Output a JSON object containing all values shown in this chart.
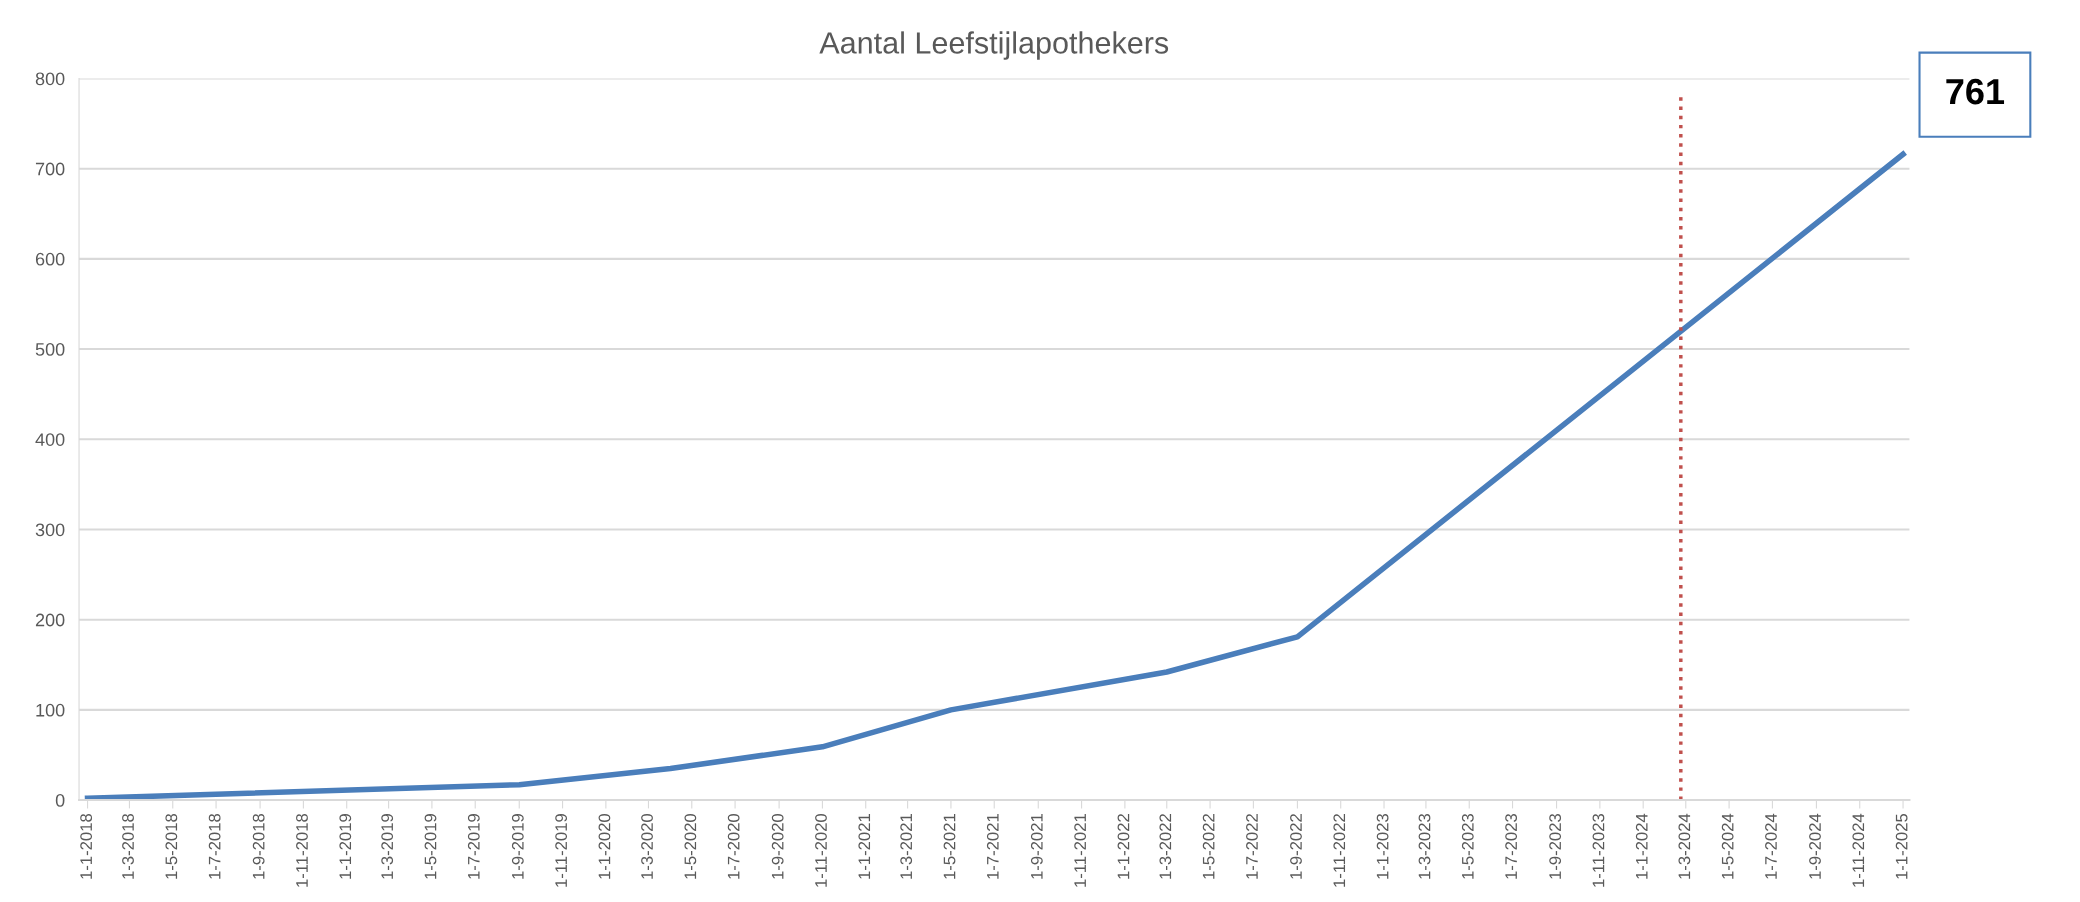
{
  "chart_data": {
    "type": "line",
    "title": "Aantal Leefstijlapothekers",
    "x": [
      "2018-01-01",
      "2019-09-01",
      "2020-04-01",
      "2020-11-01",
      "2021-05-01",
      "2022-03-01",
      "2022-09-01",
      "2025-01-01"
    ],
    "series": [
      {
        "color": "#4a7ebb",
        "values": [
          2,
          17,
          35,
          59,
          100,
          142,
          181,
          716
        ]
      }
    ],
    "ylim": [
      0,
      800
    ],
    "yticks": [
      0,
      100,
      200,
      300,
      400,
      500,
      600,
      700,
      800
    ],
    "xlim": [
      "2017-12-20",
      "2025-01-10"
    ],
    "xticks": [
      {
        "value": "2018-01-01",
        "label": "1-1-2018"
      },
      {
        "value": "2018-03-01",
        "label": "1-3-2018"
      },
      {
        "value": "2018-05-01",
        "label": "1-5-2018"
      },
      {
        "value": "2018-07-01",
        "label": "1-7-2018"
      },
      {
        "value": "2018-09-01",
        "label": "1-9-2018"
      },
      {
        "value": "2018-11-01",
        "label": "1-11-2018"
      },
      {
        "value": "2019-01-01",
        "label": "1-1-2019"
      },
      {
        "value": "2019-03-01",
        "label": "1-3-2019"
      },
      {
        "value": "2019-05-01",
        "label": "1-5-2019"
      },
      {
        "value": "2019-07-01",
        "label": "1-7-2019"
      },
      {
        "value": "2019-09-01",
        "label": "1-9-2019"
      },
      {
        "value": "2019-11-01",
        "label": "1-11-2019"
      },
      {
        "value": "2020-01-01",
        "label": "1-1-2020"
      },
      {
        "value": "2020-03-01",
        "label": "1-3-2020"
      },
      {
        "value": "2020-05-01",
        "label": "1-5-2020"
      },
      {
        "value": "2020-07-01",
        "label": "1-7-2020"
      },
      {
        "value": "2020-09-01",
        "label": "1-9-2020"
      },
      {
        "value": "2020-11-01",
        "label": "1-11-2020"
      },
      {
        "value": "2021-01-01",
        "label": "1-1-2021"
      },
      {
        "value": "2021-03-01",
        "label": "1-3-2021"
      },
      {
        "value": "2021-05-01",
        "label": "1-5-2021"
      },
      {
        "value": "2021-07-01",
        "label": "1-7-2021"
      },
      {
        "value": "2021-09-01",
        "label": "1-9-2021"
      },
      {
        "value": "2021-11-01",
        "label": "1-11-2021"
      },
      {
        "value": "2022-01-01",
        "label": "1-1-2022"
      },
      {
        "value": "2022-03-01",
        "label": "1-3-2022"
      },
      {
        "value": "2022-05-01",
        "label": "1-5-2022"
      },
      {
        "value": "2022-07-01",
        "label": "1-7-2022"
      },
      {
        "value": "2022-09-01",
        "label": "1-9-2022"
      },
      {
        "value": "2022-11-01",
        "label": "1-11-2022"
      },
      {
        "value": "2023-01-01",
        "label": "1-1-2023"
      },
      {
        "value": "2023-03-01",
        "label": "1-3-2023"
      },
      {
        "value": "2023-05-01",
        "label": "1-5-2023"
      },
      {
        "value": "2023-07-01",
        "label": "1-7-2023"
      },
      {
        "value": "2023-09-01",
        "label": "1-9-2023"
      },
      {
        "value": "2023-11-01",
        "label": "1-11-2023"
      },
      {
        "value": "2024-01-01",
        "label": "1-1-2024"
      },
      {
        "value": "2024-03-01",
        "label": "1-3-2024"
      },
      {
        "value": "2024-05-01",
        "label": "1-5-2024"
      },
      {
        "value": "2024-07-01",
        "label": "1-7-2024"
      },
      {
        "value": "2024-09-01",
        "label": "1-9-2024"
      },
      {
        "value": "2024-11-01",
        "label": "1-11-2024"
      },
      {
        "value": "2025-01-01",
        "label": "1-1-2025"
      }
    ],
    "ref_lines": [
      {
        "axis": "x",
        "value": "2024-02-23",
        "color": "#c0504d",
        "line_style": "dotted"
      }
    ],
    "annotations": [
      "761"
    ],
    "grid": "y",
    "legend": false,
    "marker": "none",
    "line_style": "solid"
  }
}
